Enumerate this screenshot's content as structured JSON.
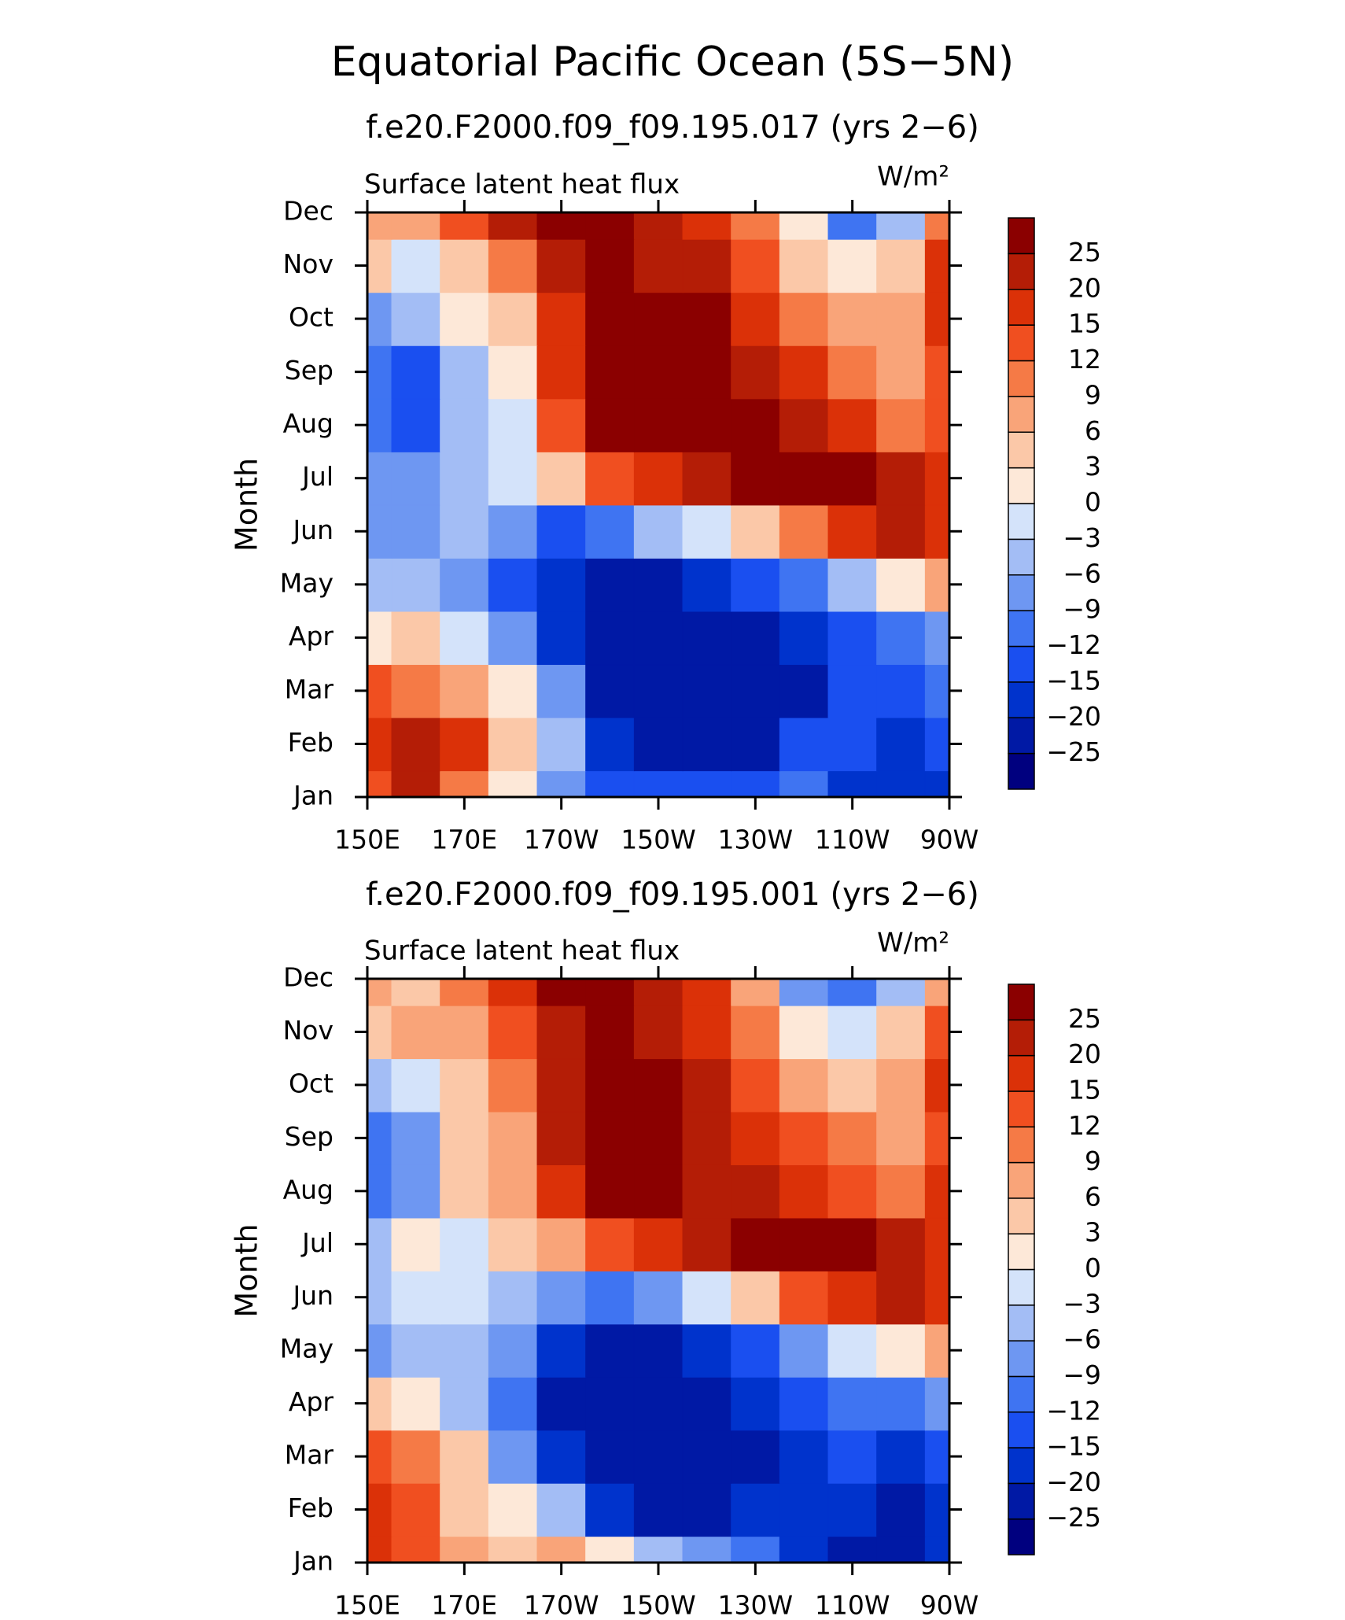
{
  "title": "Equatorial Pacific Ocean (5S−5N)",
  "chart_data": [
    {
      "type": "contour",
      "title": "f.e20.F2000.f09_f09.195.017 (yrs 2−6)",
      "left_label": "Surface latent heat flux",
      "right_label": "W/m²",
      "ylabel": "Month",
      "y": [
        "Jan",
        "Feb",
        "Mar",
        "Apr",
        "May",
        "Jun",
        "Jul",
        "Aug",
        "Sep",
        "Oct",
        "Nov",
        "Dec"
      ],
      "x": [
        150,
        160,
        170,
        180,
        190,
        200,
        210,
        220,
        230,
        240,
        250,
        260,
        270
      ],
      "xlim": [
        150,
        270
      ],
      "xticks": [
        {
          "value": 150,
          "label": "150E"
        },
        {
          "value": 170,
          "label": "170E"
        },
        {
          "value": 190,
          "label": "170W"
        },
        {
          "value": 210,
          "label": "150W"
        },
        {
          "value": 230,
          "label": "130W"
        },
        {
          "value": 250,
          "label": "110W"
        },
        {
          "value": 270,
          "label": "90W"
        }
      ],
      "values": [
        [
          12,
          20,
          9,
          0,
          -9,
          -15,
          -15,
          -15,
          -15,
          -12,
          -20,
          -20,
          -20
        ],
        [
          15,
          20,
          15,
          3,
          -6,
          -20,
          -25,
          -25,
          -25,
          -15,
          -15,
          -20,
          -15
        ],
        [
          12,
          9,
          6,
          0,
          -9,
          -25,
          -25,
          -25,
          -25,
          -25,
          -15,
          -15,
          -12
        ],
        [
          0,
          3,
          -3,
          -9,
          -20,
          -25,
          -25,
          -25,
          -25,
          -20,
          -15,
          -12,
          -9
        ],
        [
          -6,
          -6,
          -9,
          -15,
          -20,
          -25,
          -25,
          -20,
          -15,
          -12,
          -6,
          0,
          6
        ],
        [
          -9,
          -9,
          -6,
          -9,
          -15,
          -12,
          -6,
          -3,
          3,
          9,
          15,
          20,
          15
        ],
        [
          -9,
          -9,
          -6,
          -3,
          3,
          12,
          15,
          20,
          25,
          25,
          25,
          20,
          15
        ],
        [
          -12,
          -15,
          -6,
          -3,
          12,
          25,
          25,
          25,
          25,
          20,
          15,
          9,
          12
        ],
        [
          -12,
          -15,
          -6,
          0,
          15,
          25,
          25,
          25,
          20,
          15,
          9,
          6,
          12
        ],
        [
          -9,
          -6,
          0,
          3,
          15,
          25,
          25,
          25,
          15,
          9,
          6,
          6,
          15
        ],
        [
          3,
          -3,
          3,
          9,
          20,
          25,
          20,
          20,
          12,
          3,
          0,
          3,
          15
        ],
        [
          6,
          6,
          12,
          20,
          25,
          25,
          20,
          15,
          9,
          0,
          -12,
          -6,
          9
        ]
      ],
      "levels": [
        {
          "value": -25,
          "label": "−25"
        },
        {
          "value": -20,
          "label": "−20"
        },
        {
          "value": -15,
          "label": "−15"
        },
        {
          "value": -12,
          "label": "−12"
        },
        {
          "value": -9,
          "label": "−9"
        },
        {
          "value": -6,
          "label": "−6"
        },
        {
          "value": -3,
          "label": "−3"
        },
        0,
        3,
        6,
        9,
        12,
        15,
        20,
        25
      ],
      "colors": [
        "#00007f",
        "#0019a5",
        "#0033cc",
        "#1a4ff0",
        "#3f74f2",
        "#6e97f2",
        "#a3bdf5",
        "#d4e3fa",
        "#fde8d8",
        "#fbc8a8",
        "#f9a479",
        "#f57a46",
        "#f04f20",
        "#db3108",
        "#b41d06",
        "#8b0000"
      ]
    },
    {
      "type": "contour",
      "title": "f.e20.F2000.f09_f09.195.001 (yrs 2−6)",
      "left_label": "Surface latent heat flux",
      "right_label": "W/m²",
      "ylabel": "Month",
      "y": [
        "Jan",
        "Feb",
        "Mar",
        "Apr",
        "May",
        "Jun",
        "Jul",
        "Aug",
        "Sep",
        "Oct",
        "Nov",
        "Dec"
      ],
      "x": [
        150,
        160,
        170,
        180,
        190,
        200,
        210,
        220,
        230,
        240,
        250,
        260,
        270
      ],
      "xlim": [
        150,
        270
      ],
      "xticks": [
        {
          "value": 150,
          "label": "150E"
        },
        {
          "value": 170,
          "label": "170E"
        },
        {
          "value": 190,
          "label": "170W"
        },
        {
          "value": 210,
          "label": "150W"
        },
        {
          "value": 230,
          "label": "130W"
        },
        {
          "value": 250,
          "label": "110W"
        },
        {
          "value": 270,
          "label": "90W"
        }
      ],
      "values": [
        [
          15,
          12,
          6,
          3,
          6,
          0,
          -6,
          -9,
          -12,
          -20,
          -25,
          -25,
          -20
        ],
        [
          15,
          12,
          3,
          0,
          -6,
          -20,
          -25,
          -25,
          -20,
          -20,
          -20,
          -25,
          -20
        ],
        [
          12,
          9,
          3,
          -9,
          -20,
          -25,
          -25,
          -25,
          -25,
          -20,
          -15,
          -20,
          -15
        ],
        [
          3,
          0,
          -6,
          -12,
          -25,
          -25,
          -25,
          -25,
          -20,
          -15,
          -12,
          -12,
          -9
        ],
        [
          -9,
          -6,
          -6,
          -9,
          -20,
          -25,
          -25,
          -20,
          -15,
          -9,
          -3,
          0,
          6
        ],
        [
          -6,
          -3,
          -3,
          -6,
          -9,
          -12,
          -9,
          -3,
          3,
          12,
          15,
          20,
          15
        ],
        [
          -6,
          0,
          -3,
          3,
          6,
          12,
          15,
          20,
          25,
          25,
          25,
          20,
          15
        ],
        [
          -12,
          -9,
          3,
          6,
          15,
          25,
          25,
          20,
          20,
          15,
          12,
          9,
          15
        ],
        [
          -12,
          -9,
          3,
          6,
          20,
          25,
          25,
          20,
          15,
          12,
          9,
          6,
          12
        ],
        [
          -6,
          -3,
          3,
          9,
          20,
          25,
          25,
          20,
          12,
          6,
          3,
          6,
          15
        ],
        [
          3,
          6,
          6,
          12,
          20,
          25,
          20,
          15,
          9,
          0,
          -3,
          3,
          12
        ],
        [
          6,
          3,
          9,
          15,
          25,
          25,
          20,
          15,
          6,
          -9,
          -12,
          -6,
          6
        ]
      ],
      "levels": [
        {
          "value": -25,
          "label": "−25"
        },
        {
          "value": -20,
          "label": "−20"
        },
        {
          "value": -15,
          "label": "−15"
        },
        {
          "value": -12,
          "label": "−12"
        },
        {
          "value": -9,
          "label": "−9"
        },
        {
          "value": -6,
          "label": "−6"
        },
        {
          "value": -3,
          "label": "−3"
        },
        0,
        3,
        6,
        9,
        12,
        15,
        20,
        25
      ],
      "colors": [
        "#00007f",
        "#0019a5",
        "#0033cc",
        "#1a4ff0",
        "#3f74f2",
        "#6e97f2",
        "#a3bdf5",
        "#d4e3fa",
        "#fde8d8",
        "#fbc8a8",
        "#f9a479",
        "#f57a46",
        "#f04f20",
        "#db3108",
        "#b41d06",
        "#8b0000"
      ]
    }
  ]
}
